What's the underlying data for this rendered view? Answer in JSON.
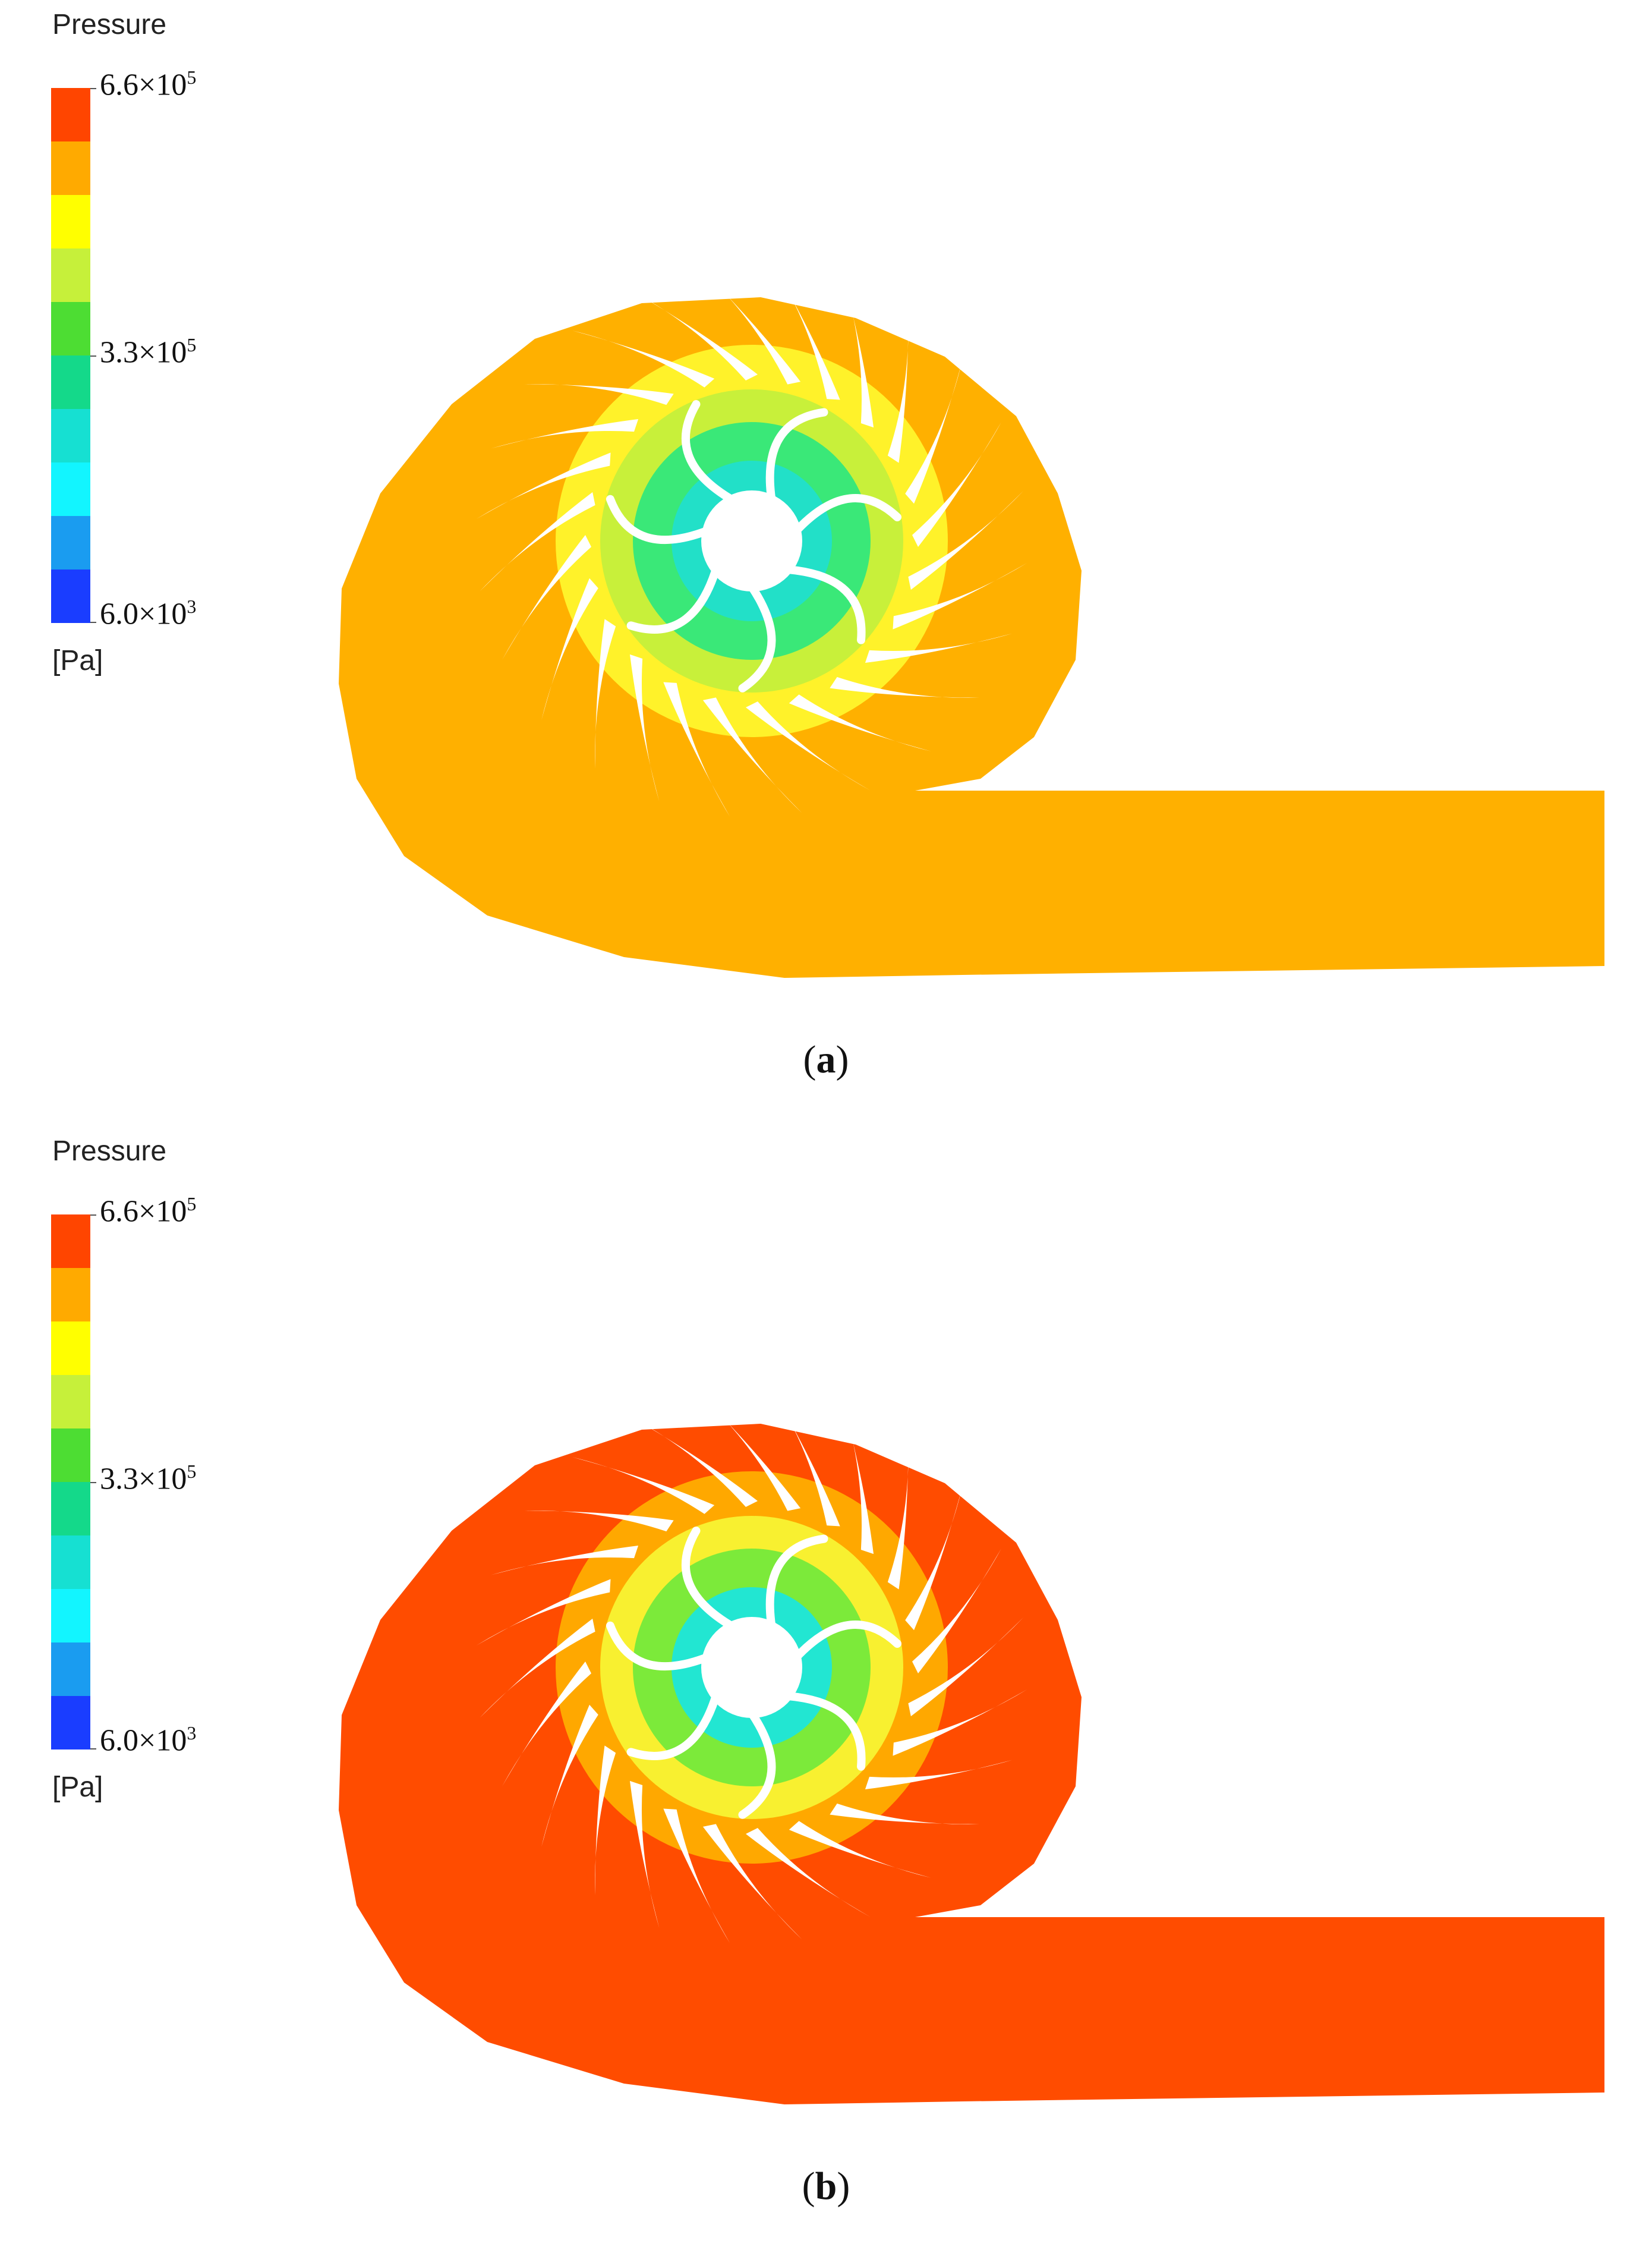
{
  "figures": [
    {
      "id": "a",
      "caption_letter": "a",
      "legend": {
        "title": "Pressure",
        "unit": "[Pa]",
        "max_mantissa": "6.6×10",
        "max_exp": "5",
        "mid_mantissa": "3.3×10",
        "mid_exp": "5",
        "min_mantissa": "6.0×10",
        "min_exp": "3"
      },
      "volute_color": "#FFB000",
      "outer_ring_color": "#FFF22A",
      "mid_ring_color": "#C8F03A",
      "inner_ring_color": "#3AE878",
      "core_color": "#22E0C8"
    },
    {
      "id": "b",
      "caption_letter": "b",
      "legend": {
        "title": "Pressure",
        "unit": "[Pa]",
        "max_mantissa": "6.6×10",
        "max_exp": "5",
        "mid_mantissa": "3.3×10",
        "mid_exp": "5",
        "min_mantissa": "6.0×10",
        "min_exp": "3"
      },
      "volute_color": "#FF4C00",
      "outer_ring_color": "#FFA800",
      "mid_ring_color": "#F8F030",
      "inner_ring_color": "#7CEA3A",
      "core_color": "#22E6D2"
    }
  ],
  "colorbar_bands": [
    "#FF4500",
    "#FFAA00",
    "#FFFF00",
    "#C6F03A",
    "#4DDD33",
    "#14D98A",
    "#16E0D2",
    "#12F5FF",
    "#1A9CF0",
    "#1A3DFF"
  ],
  "blade_color": "#FFFFFF"
}
